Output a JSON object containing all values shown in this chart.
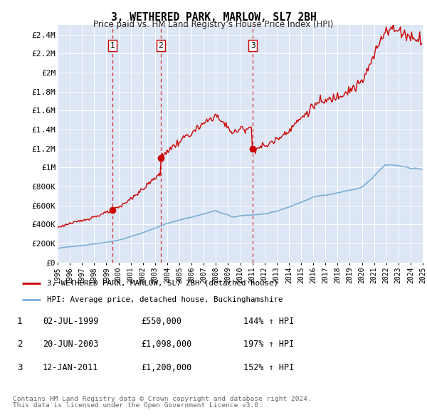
{
  "title": "3, WETHERED PARK, MARLOW, SL7 2BH",
  "subtitle": "Price paid vs. HM Land Registry’s House Price Index (HPI)",
  "background_color": "#dce6f5",
  "hpi_color": "#7bafd4",
  "price_color": "#cc0000",
  "ylim": [
    0,
    2500000
  ],
  "yticks": [
    0,
    200000,
    400000,
    600000,
    800000,
    1000000,
    1200000,
    1400000,
    1600000,
    1800000,
    2000000,
    2200000,
    2400000
  ],
  "ytick_labels": [
    "£0",
    "£200K",
    "£400K",
    "£600K",
    "£800K",
    "£1M",
    "£1.2M",
    "£1.4M",
    "£1.6M",
    "£1.8M",
    "£2M",
    "£2.2M",
    "£2.4M"
  ],
  "sale_years": [
    1999.497,
    2003.467,
    2011.033
  ],
  "sale_prices": [
    550000,
    1098000,
    1200000
  ],
  "sale_labels": [
    "1",
    "2",
    "3"
  ],
  "sale_date_strs": [
    "02-JUL-1999",
    "20-JUN-2003",
    "12-JAN-2011"
  ],
  "sale_price_strs": [
    "£550,000",
    "£1,098,000",
    "£1,200,000"
  ],
  "sale_hpi_strs": [
    "144% ↑ HPI",
    "197% ↑ HPI",
    "152% ↑ HPI"
  ],
  "legend_label_red": "3, WETHERED PARK, MARLOW, SL7 2BH (detached house)",
  "legend_label_blue": "HPI: Average price, detached house, Buckinghamshire",
  "footer_line1": "Contains HM Land Registry data © Crown copyright and database right 2024.",
  "footer_line2": "This data is licensed under the Open Government Licence v3.0.",
  "xlim": [
    1995,
    2025
  ],
  "xticks": [
    1995,
    1996,
    1997,
    1998,
    1999,
    2000,
    2001,
    2002,
    2003,
    2004,
    2005,
    2006,
    2007,
    2008,
    2009,
    2010,
    2011,
    2012,
    2013,
    2014,
    2015,
    2016,
    2017,
    2018,
    2019,
    2020,
    2021,
    2022,
    2023,
    2024,
    2025
  ]
}
